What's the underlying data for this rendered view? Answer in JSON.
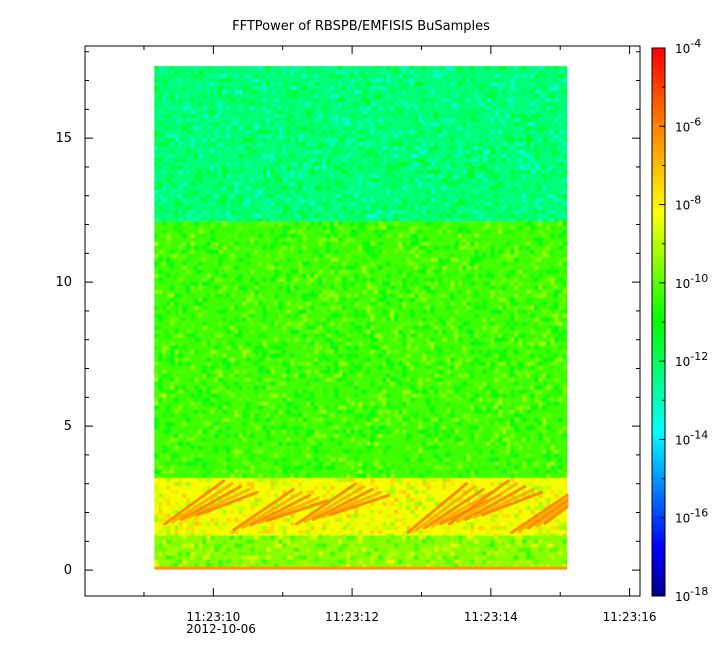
{
  "chart_data": {
    "type": "heatmap",
    "title": "FFTPower of RBSPB/EMFISIS  BuSamples",
    "xlabel": "",
    "ylabel": "",
    "x_date_label": "2012-10-06",
    "x_ticks": [
      {
        "t": 10,
        "label": "11:23:10"
      },
      {
        "t": 12,
        "label": "11:23:12"
      },
      {
        "t": 14,
        "label": "11:23:14"
      },
      {
        "t": 16,
        "label": "11:23:16"
      }
    ],
    "x_range": [
      8.15,
      16.15
    ],
    "x_data_range": [
      9.15,
      15.1
    ],
    "y_ticks": [
      0,
      5,
      10,
      15
    ],
    "y_range": [
      -0.9,
      18.2
    ],
    "y_data_range": [
      0,
      17.5
    ],
    "color_scale": "log",
    "z_range_exponent": [
      -18,
      -4
    ],
    "colorbar_ticks_exponent": [
      -4,
      -6,
      -8,
      -10,
      -12,
      -14,
      -16,
      -18
    ],
    "colorbar_base": "10",
    "colors": {
      "low": "#00008b",
      "mid_low": "#00ffff",
      "mid": "#00ff00",
      "mid_high": "#ffff00",
      "high": "#ff0000"
    },
    "regions": [
      {
        "y": [
          12.1,
          17.5
        ],
        "typical_exponent": -12.3,
        "desc_color": "#00f060"
      },
      {
        "y": [
          3.2,
          12.1
        ],
        "typical_exponent": -10.3,
        "desc_color": "#40e830"
      },
      {
        "y": [
          1.2,
          3.2
        ],
        "typical_exponent": -8.3,
        "desc_color": "#ffd000"
      },
      {
        "y": [
          0.1,
          1.2
        ],
        "typical_exponent": -9.5,
        "desc_color": "#90f020"
      }
    ],
    "chorus_bursts": [
      {
        "t": 9.3,
        "y0": 1.6,
        "y1": 3.1
      },
      {
        "t": 10.3,
        "y0": 1.4,
        "y1": 2.8
      },
      {
        "t": 11.2,
        "y0": 1.6,
        "y1": 3.0
      },
      {
        "t": 12.8,
        "y0": 1.3,
        "y1": 3.0
      },
      {
        "t": 13.4,
        "y0": 1.6,
        "y1": 3.1
      },
      {
        "t": 14.3,
        "y0": 1.3,
        "y1": 2.6
      }
    ],
    "grid": false,
    "colorbar_position": "right"
  }
}
